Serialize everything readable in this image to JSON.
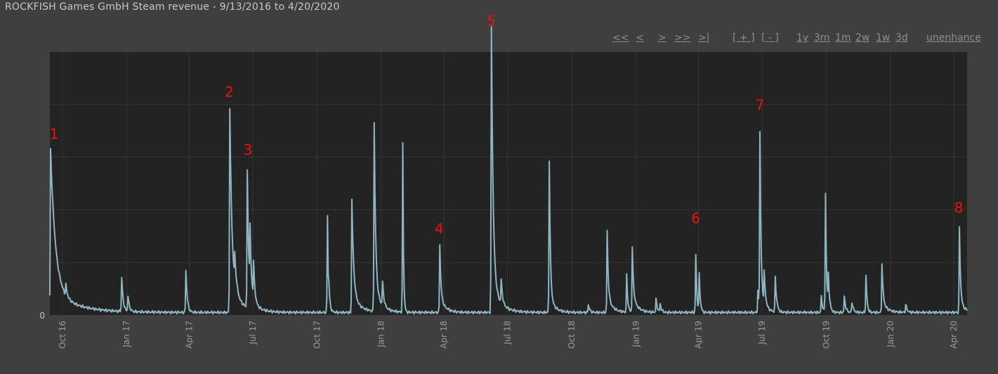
{
  "title": "ROCKFISH Games GmbH Steam revenue - 9/13/2016 to 4/20/2020",
  "nav": {
    "first": "<<",
    "prev": "<",
    "next": ">",
    "next_page": ">>",
    "last": ">|",
    "zoom_in": "[ + ]",
    "zoom_out": "[ - ]",
    "range_1y": "1y",
    "range_3m": "3m",
    "range_1m": "1m",
    "range_2w": "2w",
    "range_1w": "1w",
    "range_3d": "3d",
    "unenhance": "unenhance"
  },
  "colors": {
    "page_bg": "#3f3f3f",
    "plot_bg": "#232323",
    "line": "#8fb4c2",
    "grid": "#353535",
    "axis_text": "#9a9a9a",
    "annotation": "#e8140e"
  },
  "chart_data": {
    "type": "line",
    "title": "ROCKFISH Games GmbH Steam revenue - 9/13/2016 to 4/20/2020",
    "xlabel": "",
    "ylabel": "",
    "x_range": [
      "2016-09-13",
      "2020-04-20"
    ],
    "ylim": [
      0,
      100
    ],
    "y_tick_labels": [
      "0"
    ],
    "grid": true,
    "x_tick_labels": [
      "Oct 16",
      "Jan 17",
      "Apr 17",
      "Jul 17",
      "Oct 17",
      "Jan 18",
      "Apr 18",
      "Jul 18",
      "Oct 18",
      "Jan 19",
      "Apr 19",
      "Jul 19",
      "Oct 19",
      "Jan 20",
      "Apr 20"
    ],
    "x_ticks": [
      "2016-10-01",
      "2017-01-01",
      "2017-04-01",
      "2017-07-01",
      "2017-10-01",
      "2018-01-01",
      "2018-04-01",
      "2018-07-01",
      "2018-10-01",
      "2019-01-01",
      "2019-04-01",
      "2019-07-01",
      "2019-10-01",
      "2020-01-01",
      "2020-04-01"
    ],
    "baseline": 1,
    "spikes": [
      {
        "date": "2016-09-14",
        "value": 54,
        "decay": 7,
        "tail": 8
      },
      {
        "date": "2016-10-06",
        "value": 4,
        "decay": 2
      },
      {
        "date": "2016-12-25",
        "value": 13,
        "decay": 2
      },
      {
        "date": "2017-01-03",
        "value": 6,
        "decay": 2
      },
      {
        "date": "2017-03-27",
        "value": 16,
        "decay": 2
      },
      {
        "date": "2017-05-29",
        "value": 68,
        "decay": 3,
        "tail": 10
      },
      {
        "date": "2017-06-05",
        "value": 10,
        "decay": 3
      },
      {
        "date": "2017-06-23",
        "value": 46,
        "decay": 2,
        "tail": 6
      },
      {
        "date": "2017-06-27",
        "value": 22,
        "decay": 2
      },
      {
        "date": "2017-07-02",
        "value": 14,
        "decay": 2
      },
      {
        "date": "2017-10-16",
        "value": 37,
        "decay": 1
      },
      {
        "date": "2017-10-18",
        "value": 7,
        "decay": 2
      },
      {
        "date": "2017-11-20",
        "value": 37,
        "decay": 2.5,
        "tail": 6
      },
      {
        "date": "2017-12-22",
        "value": 64,
        "decay": 2,
        "tail": 8
      },
      {
        "date": "2018-01-03",
        "value": 9,
        "decay": 2
      },
      {
        "date": "2018-02-01",
        "value": 64,
        "decay": 1
      },
      {
        "date": "2018-03-26",
        "value": 20,
        "decay": 1.5,
        "tail": 6
      },
      {
        "date": "2018-06-08",
        "value": 98,
        "decay": 2.5,
        "tail": 10
      },
      {
        "date": "2018-06-22",
        "value": 9,
        "decay": 2
      },
      {
        "date": "2018-08-30",
        "value": 52,
        "decay": 1.5,
        "tail": 6
      },
      {
        "date": "2018-10-25",
        "value": 3,
        "decay": 2
      },
      {
        "date": "2018-11-21",
        "value": 25,
        "decay": 1.5,
        "tail": 6
      },
      {
        "date": "2018-12-19",
        "value": 14,
        "decay": 1.5
      },
      {
        "date": "2018-12-27",
        "value": 19,
        "decay": 1.5,
        "tail": 6
      },
      {
        "date": "2019-01-30",
        "value": 5,
        "decay": 2
      },
      {
        "date": "2019-02-05",
        "value": 3,
        "decay": 2
      },
      {
        "date": "2019-03-28",
        "value": 22,
        "decay": 1.5
      },
      {
        "date": "2019-04-02",
        "value": 14,
        "decay": 1.5
      },
      {
        "date": "2019-06-25",
        "value": 8,
        "decay": 2
      },
      {
        "date": "2019-06-28",
        "value": 61,
        "decay": 1.5,
        "tail": 6
      },
      {
        "date": "2019-07-04",
        "value": 12,
        "decay": 2
      },
      {
        "date": "2019-07-20",
        "value": 13,
        "decay": 2
      },
      {
        "date": "2019-09-24",
        "value": 6,
        "decay": 2
      },
      {
        "date": "2019-09-30",
        "value": 45,
        "decay": 1.5
      },
      {
        "date": "2019-10-04",
        "value": 12,
        "decay": 2
      },
      {
        "date": "2019-10-27",
        "value": 6,
        "decay": 2
      },
      {
        "date": "2019-11-07",
        "value": 4,
        "decay": 2
      },
      {
        "date": "2019-11-27",
        "value": 14,
        "decay": 1.5
      },
      {
        "date": "2019-12-20",
        "value": 15,
        "decay": 1.5,
        "tail": 4
      },
      {
        "date": "2020-01-23",
        "value": 3,
        "decay": 2
      },
      {
        "date": "2020-04-09",
        "value": 28,
        "decay": 1.5,
        "tail": 4
      }
    ],
    "annotations": [
      {
        "label": "1",
        "date": "2016-09-19",
        "value": 67
      },
      {
        "label": "2",
        "date": "2017-05-28",
        "value": 83
      },
      {
        "label": "3",
        "date": "2017-06-24",
        "value": 61
      },
      {
        "label": "4",
        "date": "2018-03-25",
        "value": 31
      },
      {
        "label": "5",
        "date": "2018-06-08",
        "value": 110
      },
      {
        "label": "6",
        "date": "2019-03-28",
        "value": 35
      },
      {
        "label": "7",
        "date": "2019-06-28",
        "value": 78
      },
      {
        "label": "8",
        "date": "2020-04-08",
        "value": 39
      }
    ]
  }
}
